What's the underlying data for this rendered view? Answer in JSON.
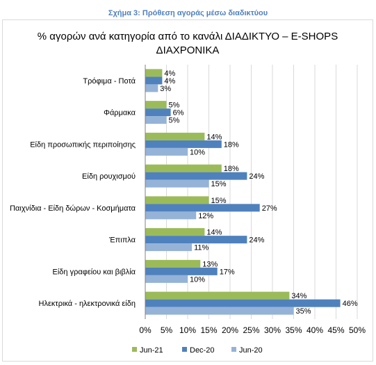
{
  "caption": "Σχήμα 3: Πρόθεση αγοράς μέσω διαδικτύου",
  "chart_data": {
    "type": "bar",
    "orientation": "horizontal",
    "title_lines": [
      "% αγορών ανά κατηγορία από το κανάλι ΔΙΑΔΙΚΤΥΟ – E-SHOPS",
      "ΔΙΑΧΡΟΝΙΚΑ"
    ],
    "categories": [
      "Τρόφιμα - Ποτά",
      "Φάρμακα",
      "Είδη προσωπικής περιποίησης",
      "Είδη ρουχισμού",
      "Παιχνίδια - Είδη δώρων - Κοσμήματα",
      "Έπιπλα",
      "Είδη γραφείου και βιβλία",
      "Ηλεκτρικά - ηλεκτρονικά είδη"
    ],
    "series": [
      {
        "name": "Jun-21",
        "color": "#9bbb59",
        "values": [
          4,
          5,
          14,
          18,
          15,
          14,
          13,
          34
        ]
      },
      {
        "name": "Dec-20",
        "color": "#4f81bd",
        "values": [
          4,
          6,
          18,
          24,
          27,
          24,
          17,
          46
        ]
      },
      {
        "name": "Jun-20",
        "color": "#95b3d7",
        "values": [
          3,
          5,
          10,
          15,
          12,
          11,
          10,
          35
        ]
      }
    ],
    "value_suffix": "%",
    "xlim": [
      0,
      50
    ],
    "xticks": [
      "0%",
      "5%",
      "10%",
      "15%",
      "20%",
      "25%",
      "30%",
      "35%",
      "40%",
      "45%",
      "50%"
    ],
    "grid": true,
    "legend_position": "bottom"
  }
}
